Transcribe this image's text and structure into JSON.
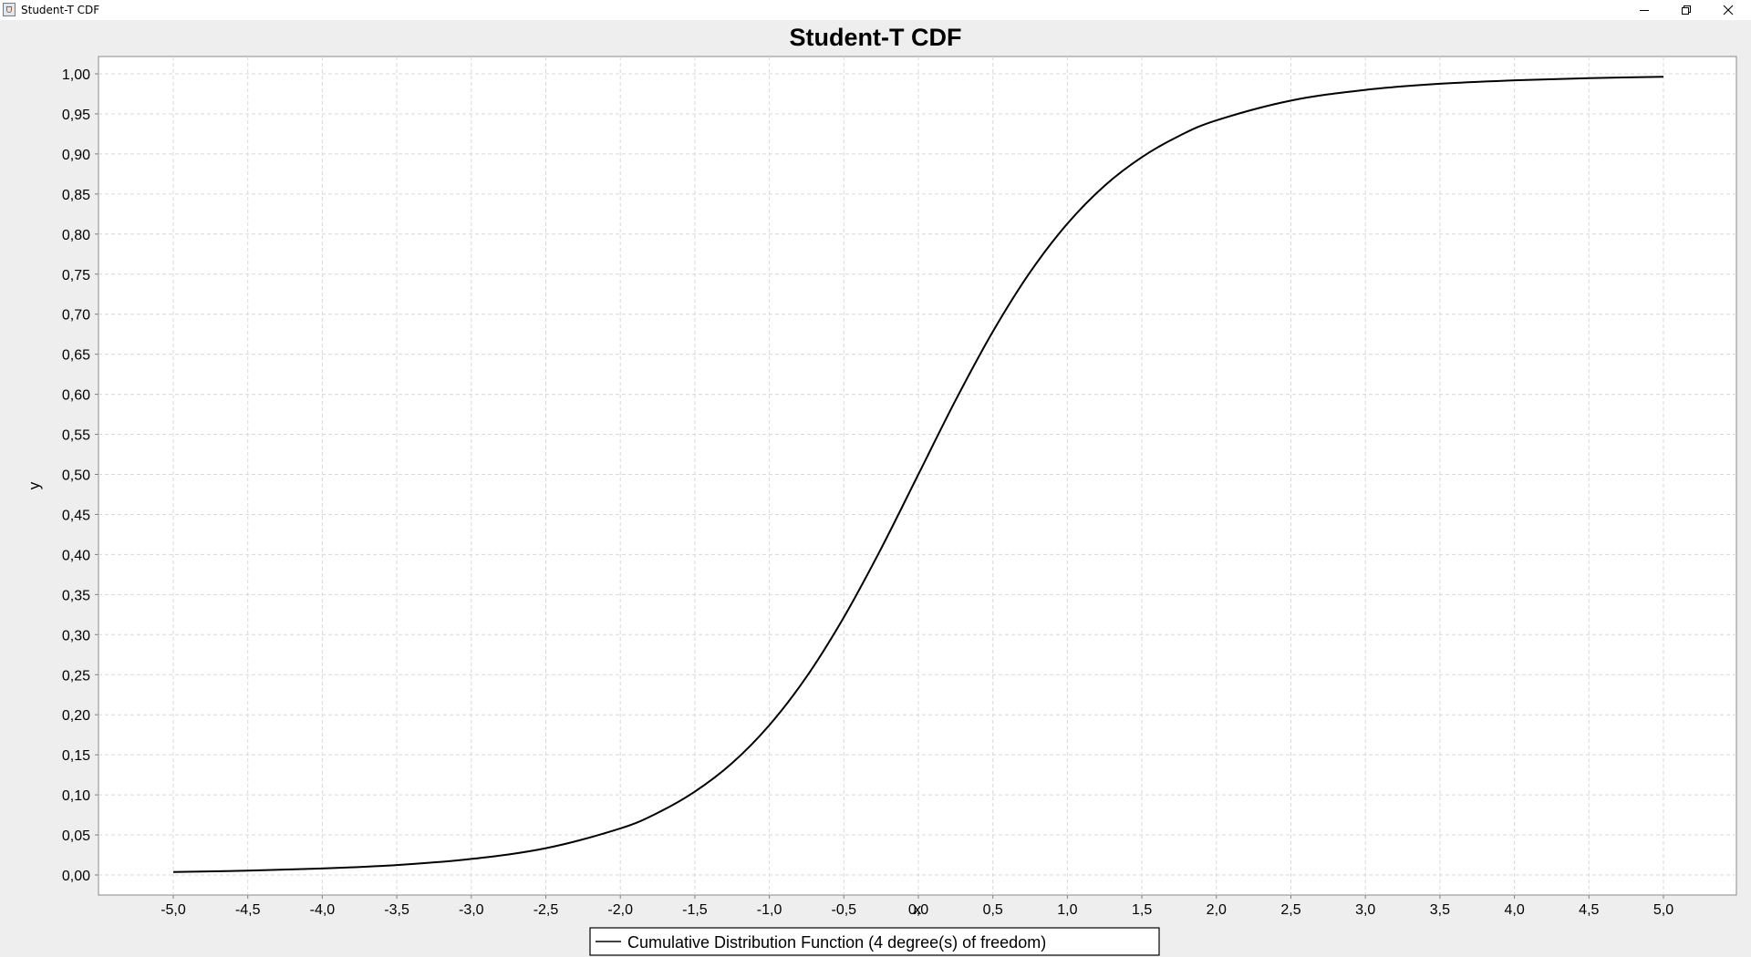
{
  "window": {
    "title": "Student-T CDF",
    "controls": [
      "minimize-icon",
      "restore-icon",
      "close-icon"
    ]
  },
  "chart_data": {
    "type": "line",
    "title": "Student-T CDF",
    "xlabel": "x",
    "ylabel": "y",
    "xlim": [
      -5.0,
      5.0
    ],
    "ylim": [
      0.0,
      1.0
    ],
    "grid": true,
    "legend_position": "bottom",
    "x_ticks": [
      -5.0,
      -4.5,
      -4.0,
      -3.5,
      -3.0,
      -2.5,
      -2.0,
      -1.5,
      -1.0,
      -0.5,
      0.0,
      0.5,
      1.0,
      1.5,
      2.0,
      2.5,
      3.0,
      3.5,
      4.0,
      4.5,
      5.0
    ],
    "x_tick_labels": [
      "-5,0",
      "-4,5",
      "-4,0",
      "-3,5",
      "-3,0",
      "-2,5",
      "-2,0",
      "-1,5",
      "-1,0",
      "-0,5",
      "0,0",
      "0,5",
      "1,0",
      "1,5",
      "2,0",
      "2,5",
      "3,0",
      "3,5",
      "4,0",
      "4,5",
      "5,0"
    ],
    "y_ticks": [
      0.0,
      0.05,
      0.1,
      0.15,
      0.2,
      0.25,
      0.3,
      0.35,
      0.4,
      0.45,
      0.5,
      0.55,
      0.6,
      0.65,
      0.7,
      0.75,
      0.8,
      0.85,
      0.9,
      0.95,
      1.0
    ],
    "y_tick_labels": [
      "0,00",
      "0,05",
      "0,10",
      "0,15",
      "0,20",
      "0,25",
      "0,30",
      "0,35",
      "0,40",
      "0,45",
      "0,50",
      "0,55",
      "0,60",
      "0,65",
      "0,70",
      "0,75",
      "0,80",
      "0,85",
      "0,90",
      "0,95",
      "1,00"
    ],
    "series": [
      {
        "name": "Cumulative Distribution Function (4 degree(s) of freedom)",
        "color": "#000000",
        "x": [
          -5.0,
          -4.5,
          -4.0,
          -3.5,
          -3.0,
          -2.5,
          -2.0,
          -1.75,
          -1.5,
          -1.25,
          -1.0,
          -0.75,
          -0.5,
          -0.25,
          0.0,
          0.25,
          0.5,
          0.75,
          1.0,
          1.25,
          1.5,
          1.75,
          2.0,
          2.5,
          3.0,
          3.5,
          4.0,
          4.5,
          5.0
        ],
        "y": [
          0.0037,
          0.0054,
          0.0081,
          0.0124,
          0.02,
          0.0334,
          0.0581,
          0.0775,
          0.104,
          0.1396,
          0.187,
          0.2475,
          0.3217,
          0.4074,
          0.5,
          0.5926,
          0.6783,
          0.7525,
          0.813,
          0.8604,
          0.896,
          0.9225,
          0.9419,
          0.9666,
          0.98,
          0.9876,
          0.9919,
          0.9946,
          0.9963
        ]
      }
    ]
  },
  "colors": {
    "background": "#eeeeee",
    "plot_background": "#ffffff",
    "gridline": "#d8d8d8",
    "axis": "#808080",
    "series": "#000000"
  }
}
